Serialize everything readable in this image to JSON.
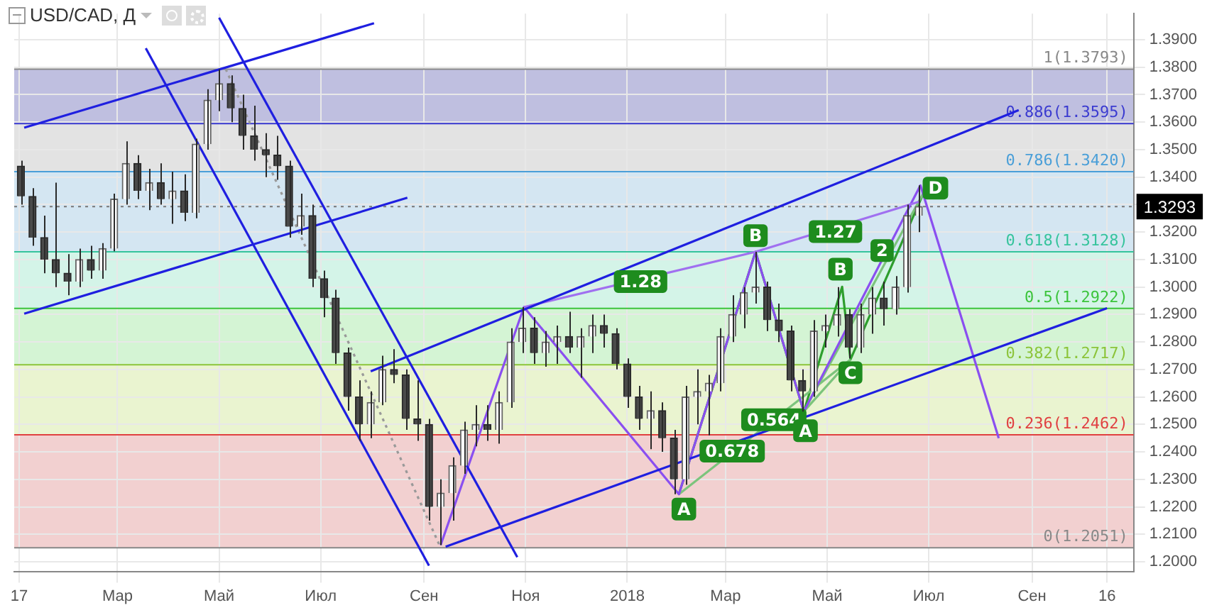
{
  "chart_data": {
    "type": "candlestick",
    "title": "USD/CAD, Д",
    "x": [
      "2017-01-02",
      "2017-01-09",
      "2017-01-16",
      "2017-01-23",
      "2017-01-30",
      "2017-02-06",
      "2017-02-13",
      "2017-02-20",
      "2017-02-27",
      "2017-03-06",
      "2017-03-13",
      "2017-03-20",
      "2017-03-27",
      "2017-04-03",
      "2017-04-10",
      "2017-04-17",
      "2017-04-24",
      "2017-05-01",
      "2017-05-08",
      "2017-05-15",
      "2017-05-22",
      "2017-05-29",
      "2017-06-05",
      "2017-06-12",
      "2017-06-19",
      "2017-06-26",
      "2017-07-03",
      "2017-07-10",
      "2017-07-17",
      "2017-07-24",
      "2017-07-31",
      "2017-08-07",
      "2017-08-14",
      "2017-08-21",
      "2017-08-28",
      "2017-09-04",
      "2017-09-11",
      "2017-09-18",
      "2017-09-25",
      "2017-10-02",
      "2017-10-09",
      "2017-10-16",
      "2017-10-23",
      "2017-10-30",
      "2017-11-06",
      "2017-11-13",
      "2017-11-20",
      "2017-11-27",
      "2017-12-04",
      "2017-12-11",
      "2017-12-18",
      "2017-12-25",
      "2018-01-01",
      "2018-01-08",
      "2018-01-15",
      "2018-01-22",
      "2018-01-29",
      "2018-02-05",
      "2018-02-12",
      "2018-02-19",
      "2018-02-26",
      "2018-03-05",
      "2018-03-12",
      "2018-03-19",
      "2018-03-26",
      "2018-04-02",
      "2018-04-09",
      "2018-04-16",
      "2018-04-23",
      "2018-04-30",
      "2018-05-07",
      "2018-05-14",
      "2018-05-21",
      "2018-05-28",
      "2018-06-04",
      "2018-06-11",
      "2018-06-18",
      "2018-06-25"
    ],
    "ohlc": [
      [
        1.344,
        1.346,
        1.33,
        1.333
      ],
      [
        1.333,
        1.336,
        1.315,
        1.318
      ],
      [
        1.318,
        1.326,
        1.305,
        1.31
      ],
      [
        1.31,
        1.338,
        1.3,
        1.305
      ],
      [
        1.305,
        1.312,
        1.297,
        1.302
      ],
      [
        1.302,
        1.314,
        1.3,
        1.31
      ],
      [
        1.31,
        1.315,
        1.303,
        1.306
      ],
      [
        1.306,
        1.316,
        1.303,
        1.314
      ],
      [
        1.314,
        1.334,
        1.313,
        1.332
      ],
      [
        1.332,
        1.353,
        1.33,
        1.345
      ],
      [
        1.345,
        1.348,
        1.332,
        1.335
      ],
      [
        1.335,
        1.343,
        1.328,
        1.338
      ],
      [
        1.338,
        1.345,
        1.33,
        1.332
      ],
      [
        1.332,
        1.342,
        1.323,
        1.335
      ],
      [
        1.335,
        1.341,
        1.324,
        1.327
      ],
      [
        1.327,
        1.354,
        1.325,
        1.352
      ],
      [
        1.352,
        1.372,
        1.35,
        1.368
      ],
      [
        1.368,
        1.3793,
        1.364,
        1.374
      ],
      [
        1.374,
        1.377,
        1.36,
        1.365
      ],
      [
        1.365,
        1.37,
        1.35,
        1.355
      ],
      [
        1.355,
        1.366,
        1.346,
        1.35
      ],
      [
        1.35,
        1.356,
        1.34,
        1.348
      ],
      [
        1.348,
        1.355,
        1.339,
        1.344
      ],
      [
        1.344,
        1.346,
        1.318,
        1.322
      ],
      [
        1.322,
        1.334,
        1.319,
        1.326
      ],
      [
        1.326,
        1.33,
        1.3,
        1.303
      ],
      [
        1.303,
        1.306,
        1.289,
        1.296
      ],
      [
        1.296,
        1.299,
        1.272,
        1.276
      ],
      [
        1.276,
        1.278,
        1.255,
        1.26
      ],
      [
        1.26,
        1.266,
        1.244,
        1.25
      ],
      [
        1.25,
        1.262,
        1.245,
        1.258
      ],
      [
        1.258,
        1.275,
        1.257,
        1.27
      ],
      [
        1.27,
        1.2774,
        1.265,
        1.268
      ],
      [
        1.268,
        1.27,
        1.248,
        1.252
      ],
      [
        1.252,
        1.266,
        1.244,
        1.25
      ],
      [
        1.25,
        1.252,
        1.215,
        1.22
      ],
      [
        1.22,
        1.23,
        1.2061,
        1.225
      ],
      [
        1.225,
        1.238,
        1.215,
        1.235
      ],
      [
        1.235,
        1.251,
        1.232,
        1.248
      ],
      [
        1.248,
        1.257,
        1.242,
        1.25
      ],
      [
        1.25,
        1.257,
        1.244,
        1.248
      ],
      [
        1.248,
        1.262,
        1.243,
        1.258
      ],
      [
        1.258,
        1.285,
        1.256,
        1.28
      ],
      [
        1.28,
        1.2927,
        1.276,
        1.285
      ],
      [
        1.285,
        1.289,
        1.272,
        1.276
      ],
      [
        1.276,
        1.284,
        1.271,
        1.28
      ],
      [
        1.28,
        1.286,
        1.272,
        1.282
      ],
      [
        1.282,
        1.291,
        1.276,
        1.278
      ],
      [
        1.278,
        1.285,
        1.267,
        1.282
      ],
      [
        1.282,
        1.29,
        1.276,
        1.286
      ],
      [
        1.286,
        1.29,
        1.278,
        1.283
      ],
      [
        1.283,
        1.285,
        1.27,
        1.272
      ],
      [
        1.272,
        1.274,
        1.256,
        1.26
      ],
      [
        1.26,
        1.264,
        1.248,
        1.252
      ],
      [
        1.252,
        1.262,
        1.241,
        1.255
      ],
      [
        1.255,
        1.258,
        1.24,
        1.245
      ],
      [
        1.245,
        1.248,
        1.2246,
        1.23
      ],
      [
        1.23,
        1.264,
        1.228,
        1.26
      ],
      [
        1.26,
        1.27,
        1.25,
        1.262
      ],
      [
        1.262,
        1.268,
        1.246,
        1.265
      ],
      [
        1.265,
        1.285,
        1.262,
        1.282
      ],
      [
        1.282,
        1.297,
        1.28,
        1.29
      ],
      [
        1.29,
        1.3,
        1.285,
        1.298
      ],
      [
        1.298,
        1.3128,
        1.294,
        1.3
      ],
      [
        1.3,
        1.302,
        1.284,
        1.288
      ],
      [
        1.288,
        1.294,
        1.28,
        1.284
      ],
      [
        1.284,
        1.286,
        1.262,
        1.266
      ],
      [
        1.266,
        1.27,
        1.2547,
        1.262
      ],
      [
        1.262,
        1.288,
        1.26,
        1.284
      ],
      [
        1.284,
        1.29,
        1.278,
        1.286
      ],
      [
        1.286,
        1.3,
        1.282,
        1.29
      ],
      [
        1.29,
        1.292,
        1.274,
        1.278
      ],
      [
        1.278,
        1.294,
        1.276,
        1.29
      ],
      [
        1.29,
        1.3,
        1.283,
        1.296
      ],
      [
        1.296,
        1.302,
        1.286,
        1.292
      ],
      [
        1.292,
        1.304,
        1.29,
        1.3
      ],
      [
        1.3,
        1.33,
        1.298,
        1.326
      ],
      [
        1.326,
        1.337,
        1.32,
        1.3293
      ]
    ],
    "series": [
      {
        "type": "line",
        "color": "#1f1fe0",
        "x": [
          "2017-01-04",
          "2017-08-02"
        ],
        "values": [
          1.358,
          1.396
        ]
      },
      {
        "type": "line",
        "color": "#1f1fe0",
        "x": [
          "2017-01-04",
          "2017-08-22"
        ],
        "values": [
          1.2903,
          1.3325
        ]
      },
      {
        "type": "line",
        "color": "#1f1fe0",
        "x": [
          "2017-03-18",
          "2017-09-04"
        ],
        "values": [
          1.3869,
          1.1986
        ]
      },
      {
        "type": "line",
        "color": "#1f1fe0",
        "x": [
          "2017-05-01",
          "2017-10-27"
        ],
        "values": [
          1.398,
          1.2017
        ]
      },
      {
        "type": "line",
        "color": "#1f1fe0",
        "x": [
          "2017-07-31",
          "2018-08-24"
        ],
        "values": [
          1.2693,
          1.3644
        ]
      },
      {
        "type": "line",
        "color": "#1f1fe0",
        "x": [
          "2017-09-14",
          "2018-10-16"
        ],
        "values": [
          1.2055,
          1.2923
        ]
      },
      {
        "type": "line",
        "color": "#999999",
        "line_style": "dotted",
        "x": [
          "2017-05-05",
          "2017-09-11"
        ],
        "values": [
          1.3793,
          1.2051
        ]
      },
      {
        "type": "line",
        "color": "#a070f0",
        "x": [
          "2017-10-31",
          "2018-03-19",
          "2018-06-25"
        ],
        "values": [
          1.2927,
          1.3128,
          1.331
        ]
      },
      {
        "type": "line",
        "color": "#8a4ff0",
        "x": [
          "2017-09-11",
          "2017-10-31",
          "2018-02-01",
          "2018-03-19",
          "2018-04-17",
          "2018-06-26",
          "2018-08-12"
        ],
        "values": [
          1.2061,
          1.2927,
          1.2246,
          1.3128,
          1.2547,
          1.337,
          1.245
        ]
      },
      {
        "type": "line",
        "color": "#7cc47c",
        "x": [
          "2018-02-01",
          "2018-05-15"
        ],
        "values": [
          1.2246,
          1.2736
        ]
      },
      {
        "type": "line",
        "color": "#7cc47c",
        "x": [
          "2018-04-17",
          "2018-06-28"
        ],
        "values": [
          1.2547,
          1.3344
        ]
      },
      {
        "type": "line",
        "color": "#7cc47c",
        "x": [
          "2018-04-17",
          "2018-05-15"
        ],
        "values": [
          1.2547,
          1.2736
        ]
      },
      {
        "type": "line",
        "color": "#2e9e2e",
        "x": [
          "2018-02-01",
          "2018-03-19",
          "2018-04-17",
          "2018-05-10",
          "2018-05-15",
          "2018-06-28"
        ],
        "values": [
          1.2246,
          1.3128,
          1.2547,
          1.3001,
          1.2736,
          1.3344
        ]
      }
    ],
    "xlim": [
      "2016-12-29",
      "2018-11-01"
    ],
    "xticks": [
      {
        "value": "2017-01-01",
        "label": "17"
      },
      {
        "value": "2017-03-01",
        "label": "Мар"
      },
      {
        "value": "2017-05-01",
        "label": "Май"
      },
      {
        "value": "2017-07-01",
        "label": "Июл"
      },
      {
        "value": "2017-09-01",
        "label": "Сен"
      },
      {
        "value": "2017-11-01",
        "label": "Ноя"
      },
      {
        "value": "2018-01-01",
        "label": "2018"
      },
      {
        "value": "2018-03-01",
        "label": "Мар"
      },
      {
        "value": "2018-05-01",
        "label": "Май"
      },
      {
        "value": "2018-07-01",
        "label": "Июл"
      },
      {
        "value": "2018-09-01",
        "label": "Сен"
      },
      {
        "value": "2018-10-16",
        "label": "16"
      }
    ],
    "ylim": [
      1.1965,
      1.3995
    ],
    "yticks": [
      {
        "value": 1.2,
        "label": "1.2000"
      },
      {
        "value": 1.21,
        "label": "1.2100"
      },
      {
        "value": 1.22,
        "label": "1.2200"
      },
      {
        "value": 1.23,
        "label": "1.2300"
      },
      {
        "value": 1.24,
        "label": "1.2400"
      },
      {
        "value": 1.25,
        "label": "1.2500"
      },
      {
        "value": 1.26,
        "label": "1.2600"
      },
      {
        "value": 1.27,
        "label": "1.2700"
      },
      {
        "value": 1.28,
        "label": "1.2800"
      },
      {
        "value": 1.29,
        "label": "1.2900"
      },
      {
        "value": 1.3,
        "label": "1.3000"
      },
      {
        "value": 1.31,
        "label": "1.3100"
      },
      {
        "value": 1.32,
        "label": "1.3200"
      },
      {
        "value": 1.33,
        "label": null
      },
      {
        "value": 1.34,
        "label": "1.3400"
      },
      {
        "value": 1.35,
        "label": "1.3500"
      },
      {
        "value": 1.36,
        "label": "1.3600"
      },
      {
        "value": 1.37,
        "label": "1.3700"
      },
      {
        "value": 1.38,
        "label": "1.3800"
      },
      {
        "value": 1.39,
        "label": "1.3900"
      }
    ],
    "bands": [
      {
        "axis": "y",
        "from": 1.2051,
        "to": 1.2462,
        "color": "#f0c8c8"
      },
      {
        "axis": "y",
        "from": 1.2462,
        "to": 1.2717,
        "color": "#e6f2c8"
      },
      {
        "axis": "y",
        "from": 1.2717,
        "to": 1.2922,
        "color": "#ccf2cc"
      },
      {
        "axis": "y",
        "from": 1.2922,
        "to": 1.3128,
        "color": "#ccf2e4"
      },
      {
        "axis": "y",
        "from": 1.3128,
        "to": 1.342,
        "color": "#cce2f0"
      },
      {
        "axis": "y",
        "from": 1.342,
        "to": 1.3595,
        "color": "#dedede"
      },
      {
        "axis": "y",
        "from": 1.3595,
        "to": 1.3793,
        "color": "#b4b4da"
      }
    ],
    "ref_lines": [
      {
        "axis": "y",
        "value": 1.3793,
        "label": "1(1.3793)",
        "color": "#888888"
      },
      {
        "axis": "y",
        "value": 1.3595,
        "label": "0.886(1.3595)",
        "color": "#3b3bd0"
      },
      {
        "axis": "y",
        "value": 1.342,
        "label": "0.786(1.3420)",
        "color": "#4a9fd8"
      },
      {
        "axis": "y",
        "value": 1.3128,
        "label": "0.618(1.3128)",
        "color": "#36c49c"
      },
      {
        "axis": "y",
        "value": 1.2922,
        "label": "0.5(1.2922)",
        "color": "#3cc43c"
      },
      {
        "axis": "y",
        "value": 1.2717,
        "label": "0.382(1.2717)",
        "color": "#8cc43a"
      },
      {
        "axis": "y",
        "value": 1.2462,
        "label": "0.236(1.2462)",
        "color": "#e04040"
      },
      {
        "axis": "y",
        "value": 1.2051,
        "label": "0(1.2051)",
        "color": "#888888"
      },
      {
        "axis": "y",
        "value": 1.3293,
        "label": "1.3293",
        "color": "#777777",
        "line_style": "dotted"
      }
    ],
    "annotations": [
      {
        "text": "1.28",
        "x": "2018-01-09",
        "y": 1.302
      },
      {
        "text": "1.27",
        "x": "2018-05-06",
        "y": 1.3202
      },
      {
        "text": "0.678",
        "x": "2018-03-05",
        "y": 1.2403
      },
      {
        "text": "0.564",
        "x": "2018-03-30",
        "y": 1.2517
      },
      {
        "text": "A",
        "x": "2018-02-04",
        "y": 1.2192
      },
      {
        "text": "B",
        "x": "2018-03-19",
        "y": 1.3187
      },
      {
        "text": "A",
        "x": "2018-04-18",
        "y": 1.2477
      },
      {
        "text": "B",
        "x": "2018-05-09",
        "y": 1.3065
      },
      {
        "text": "C",
        "x": "2018-05-15",
        "y": 1.2688
      },
      {
        "text": "2",
        "x": "2018-06-03",
        "y": 1.3133
      },
      {
        "text": "D",
        "x": "2018-07-05",
        "y": 1.336
      }
    ],
    "grid": true
  }
}
